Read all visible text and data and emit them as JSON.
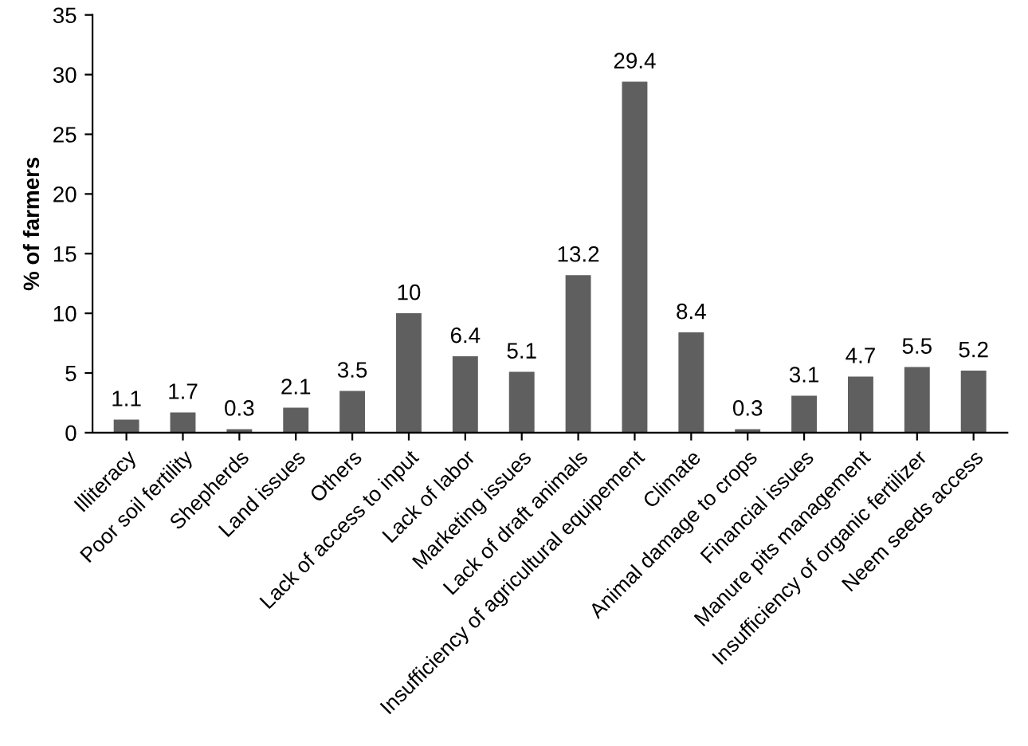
{
  "chart_data": {
    "type": "bar",
    "ylabel": "% of farmers",
    "categories": [
      "Illiteracy",
      "Poor soil fertility",
      "Shepherds",
      "Land issues",
      "Others",
      "Lack of access to input",
      "Lack of labor",
      "Marketing issues",
      "Lack of draft animals",
      "Insufficiency of agricultural equipement",
      "Climate",
      "Animal damage to crops",
      "Financial issues",
      "Manure pits management",
      "Insufficiency of organic fertilizer",
      "Neem seeds access"
    ],
    "values": [
      1.1,
      1.7,
      0.3,
      2.1,
      3.5,
      10,
      6.4,
      5.1,
      13.2,
      29.4,
      8.4,
      0.3,
      3.1,
      4.7,
      5.5,
      5.2
    ],
    "color": "#5f5f5f",
    "ylim": [
      0,
      35
    ],
    "yticks": [
      0,
      5,
      10,
      15,
      20,
      25,
      30,
      35
    ],
    "grid": false,
    "legend": false,
    "data_labels": true
  }
}
